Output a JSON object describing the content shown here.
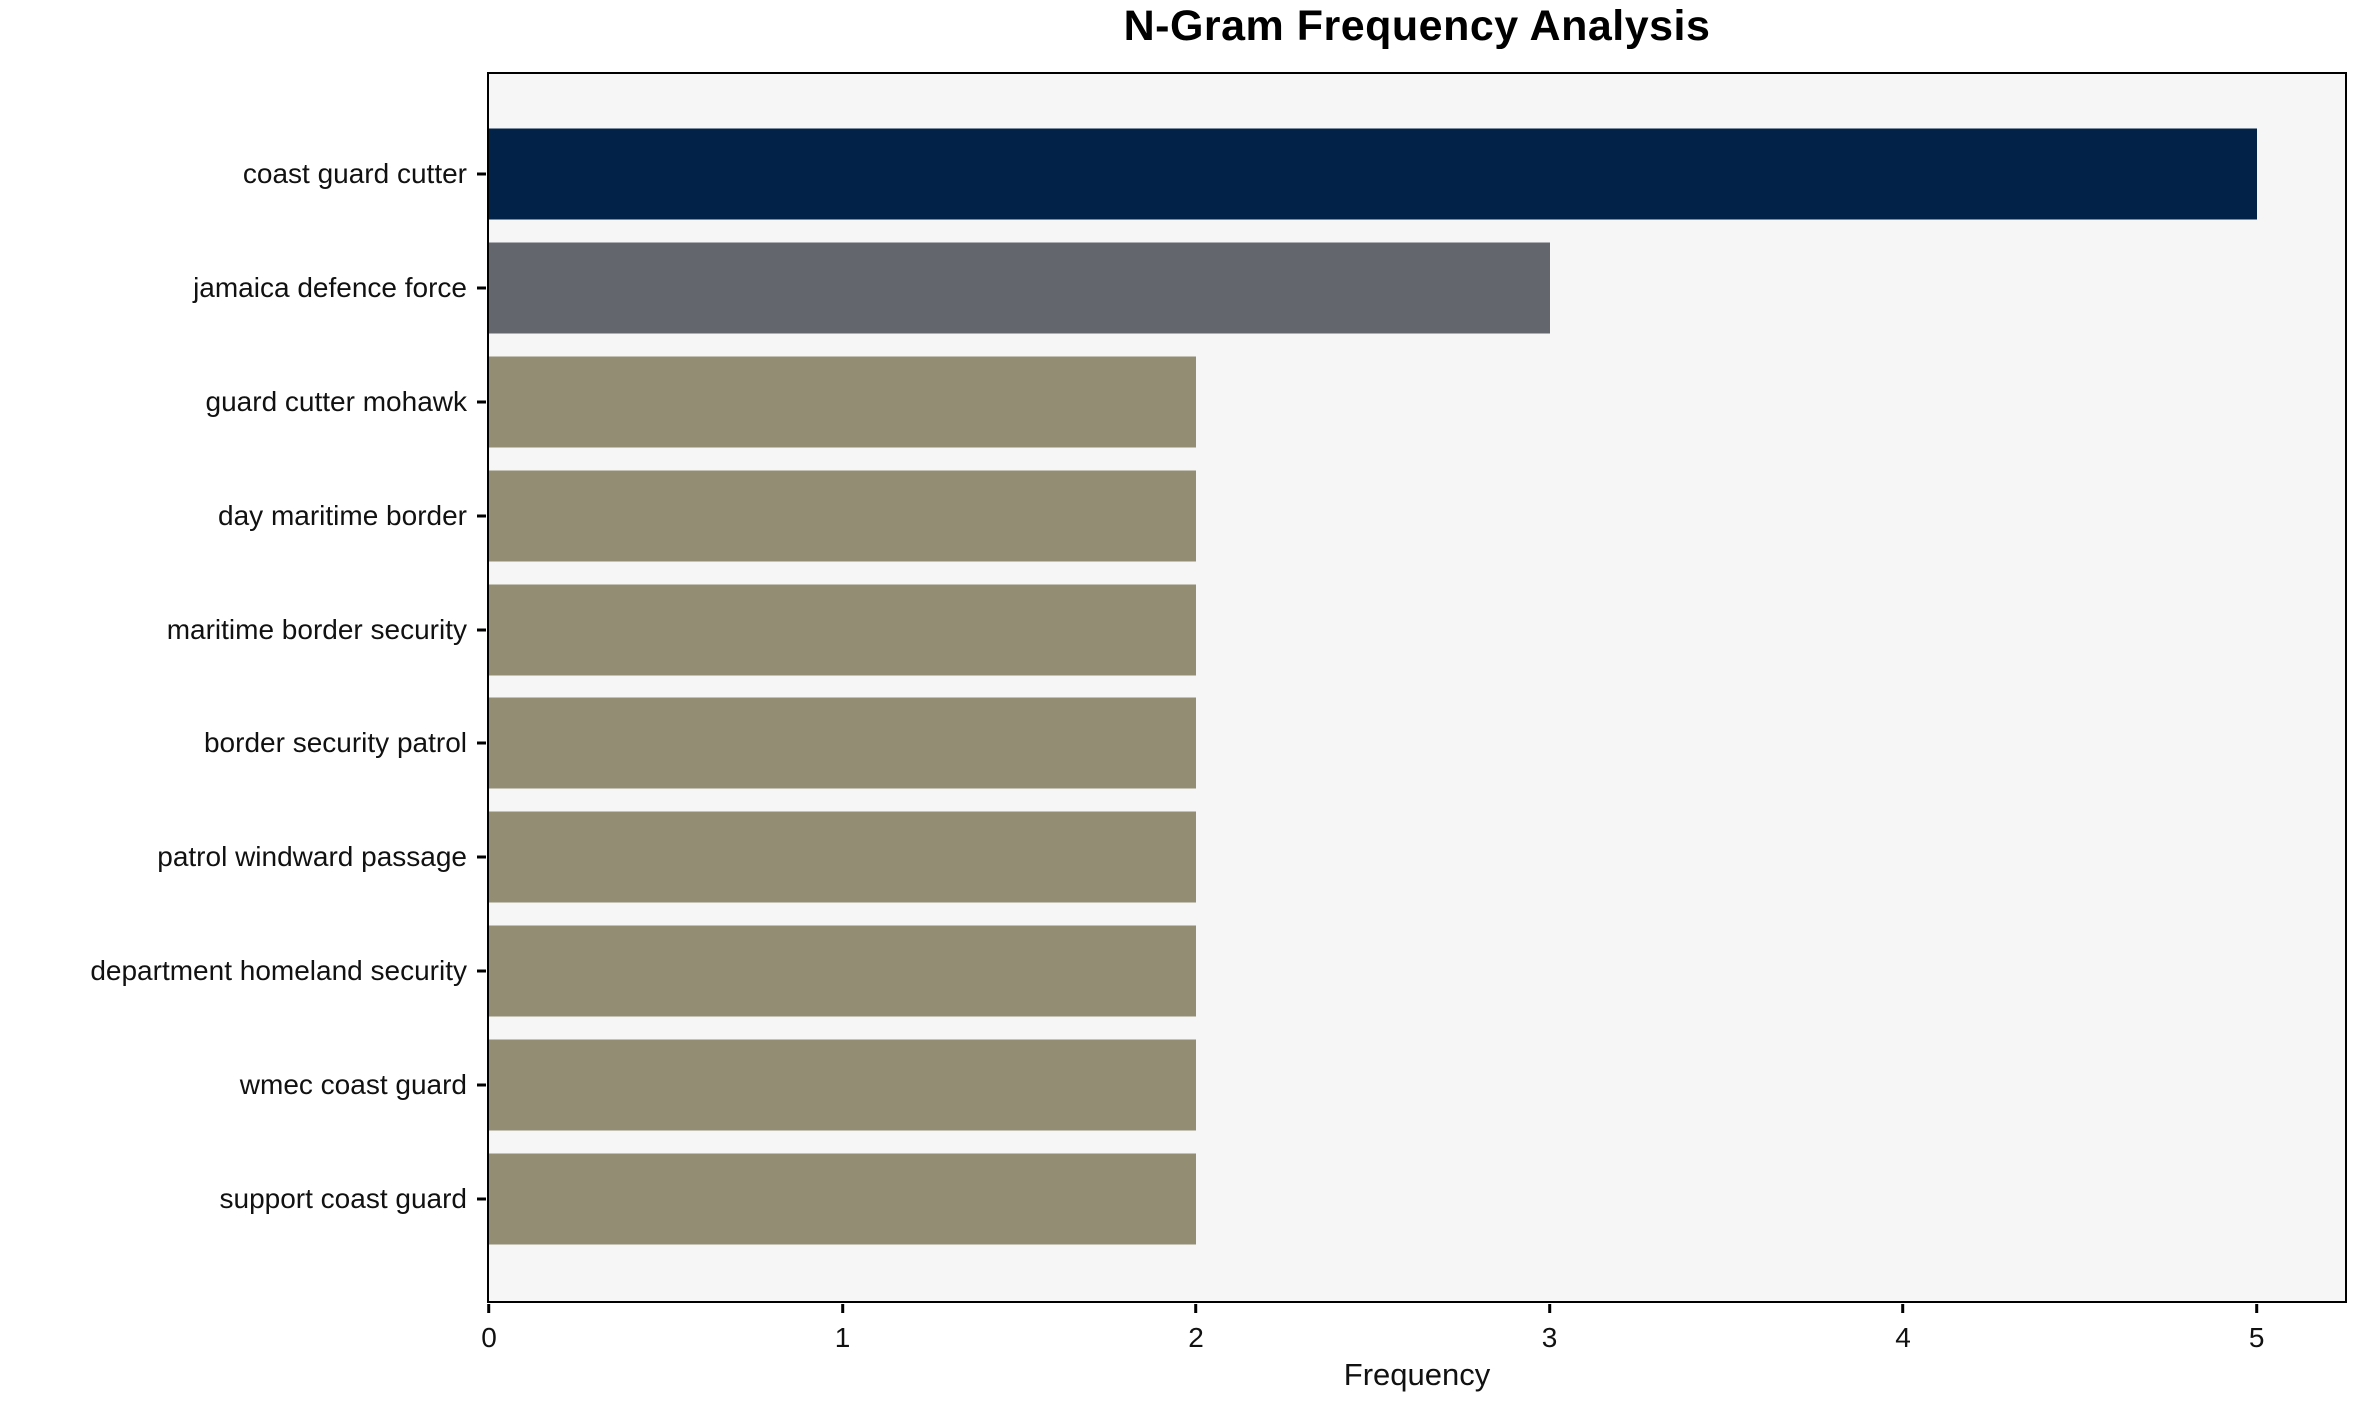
{
  "chart_data": {
    "type": "bar",
    "orientation": "horizontal",
    "title": "N-Gram Frequency Analysis",
    "xlabel": "Frequency",
    "ylabel": "",
    "categories": [
      "coast guard cutter",
      "jamaica defence force",
      "guard cutter mohawk",
      "day maritime border",
      "maritime border security",
      "border security patrol",
      "patrol windward passage",
      "department homeland security",
      "wmec coast guard",
      "support coast guard"
    ],
    "values": [
      5,
      3,
      2,
      2,
      2,
      2,
      2,
      2,
      2,
      2
    ],
    "bar_colors": [
      "#032248",
      "#64666e",
      "#938d74",
      "#938d74",
      "#938d74",
      "#938d74",
      "#938d74",
      "#938d74",
      "#938d74",
      "#938d74"
    ],
    "xlim": [
      0,
      5.25
    ],
    "xticks": [
      0,
      1,
      2,
      3,
      4,
      5
    ],
    "grid": false,
    "legend": "none",
    "plot_background": "#f6f6f6",
    "figure_background": "#ffffff",
    "spine_color": "#000000",
    "text_color": "#111111"
  }
}
